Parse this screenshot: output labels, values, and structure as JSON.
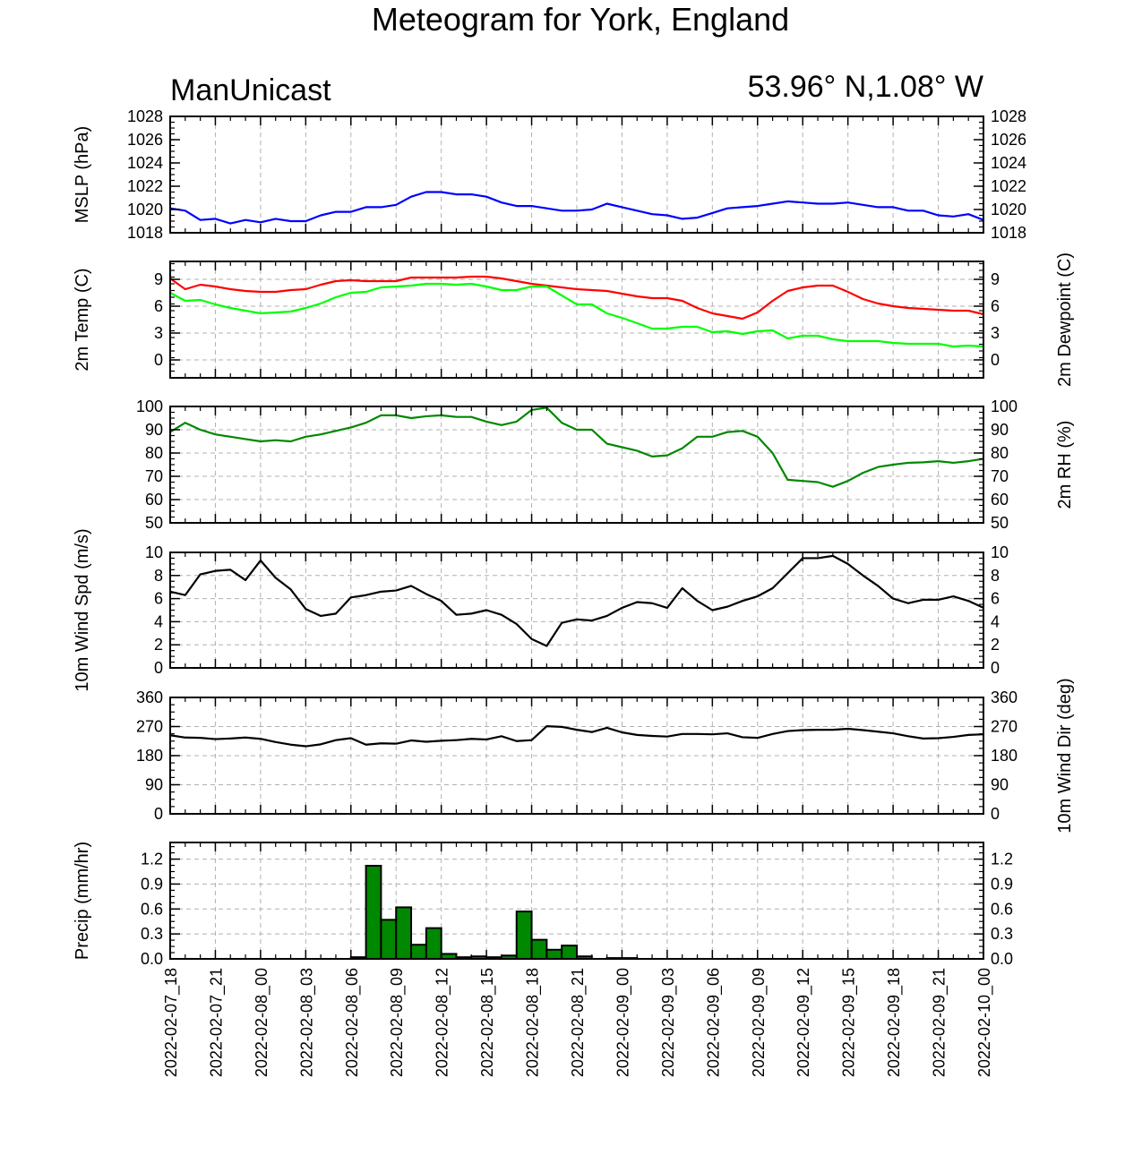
{
  "header": {
    "title": "Meteogram for York, England",
    "left_label": "ManUnicast",
    "right_label": "53.96° N,1.08° W"
  },
  "colors": {
    "mslp": "#0000ff",
    "temp": "#ff0000",
    "dewpoint": "#00ff00",
    "rh": "#008800",
    "wind": "#000000",
    "precip_fill": "#008800",
    "grid": "#b0b0b0"
  },
  "chart_data": [
    {
      "id": "mslp",
      "type": "line",
      "ylabel": "MSLP (hPa)",
      "ylabel_right": "",
      "ylim": [
        1018,
        1028
      ],
      "yticks": [
        1018,
        1020,
        1022,
        1024,
        1026,
        1028
      ],
      "ytick_labels": [
        "1018",
        "1020",
        "1022",
        "1024",
        "1026",
        "1028"
      ],
      "right_tick_labels": true,
      "hgrid": false,
      "series": [
        {
          "name": "",
          "color": "#0000ff",
          "values": [
            1020.1,
            1019.9,
            1019.1,
            1019.2,
            1018.8,
            1019.1,
            1018.9,
            1019.2,
            1019.0,
            1019.0,
            1019.5,
            1019.8,
            1019.8,
            1020.2,
            1020.2,
            1020.4,
            1021.1,
            1021.5,
            1021.5,
            1021.3,
            1021.3,
            1021.1,
            1020.6,
            1020.3,
            1020.3,
            1020.1,
            1019.9,
            1019.9,
            1020.0,
            1020.5,
            1020.2,
            1019.9,
            1019.6,
            1019.5,
            1019.2,
            1019.3,
            1019.7,
            1020.1,
            1020.2,
            1020.3,
            1020.5,
            1020.7,
            1020.6,
            1020.5,
            1020.5,
            1020.6,
            1020.4,
            1020.2,
            1020.2,
            1019.9,
            1019.9,
            1019.5,
            1019.4,
            1019.6,
            1019.1
          ]
        }
      ]
    },
    {
      "id": "temp",
      "type": "line",
      "ylabel": "2m Temp (C)",
      "ylabel_right": "2m Dewpoint (C)",
      "ylim": [
        -2,
        11
      ],
      "yticks": [
        0,
        3,
        6,
        9
      ],
      "ytick_labels": [
        "0",
        "3",
        "6",
        "9"
      ],
      "right_tick_labels": true,
      "hgrid": true,
      "series": [
        {
          "name": "",
          "color": "#ff0000",
          "values": [
            9.1,
            7.9,
            8.4,
            8.2,
            7.9,
            7.7,
            7.6,
            7.6,
            7.8,
            7.9,
            8.4,
            8.8,
            8.9,
            8.8,
            8.8,
            8.8,
            9.2,
            9.2,
            9.2,
            9.2,
            9.3,
            9.3,
            9.1,
            8.8,
            8.5,
            8.3,
            8.1,
            7.9,
            7.8,
            7.7,
            7.4,
            7.1,
            6.9,
            6.9,
            6.6,
            5.8,
            5.2,
            4.9,
            4.6,
            5.3,
            6.6,
            7.7,
            8.1,
            8.3,
            8.3,
            7.6,
            6.8,
            6.3,
            6.0,
            5.8,
            5.7,
            5.6,
            5.5,
            5.5,
            5.1
          ]
        },
        {
          "name": "",
          "color": "#00ff00",
          "values": [
            7.5,
            6.6,
            6.7,
            6.2,
            5.8,
            5.5,
            5.2,
            5.3,
            5.4,
            5.8,
            6.3,
            7.0,
            7.5,
            7.6,
            8.1,
            8.2,
            8.3,
            8.5,
            8.5,
            8.4,
            8.5,
            8.2,
            7.8,
            7.8,
            8.2,
            8.2,
            7.2,
            6.2,
            6.2,
            5.2,
            4.7,
            4.1,
            3.5,
            3.5,
            3.7,
            3.7,
            3.1,
            3.2,
            2.9,
            3.2,
            3.3,
            2.4,
            2.7,
            2.7,
            2.3,
            2.1,
            2.1,
            2.1,
            1.9,
            1.8,
            1.8,
            1.8,
            1.5,
            1.6,
            1.5
          ]
        }
      ]
    },
    {
      "id": "rh",
      "type": "line",
      "ylabel": "",
      "ylabel_right": "2m RH (%)",
      "ylim": [
        50,
        100
      ],
      "yticks": [
        50,
        60,
        70,
        80,
        90,
        100
      ],
      "ytick_labels": [
        "50",
        "60",
        "70",
        "80",
        "90",
        "100"
      ],
      "right_tick_labels": true,
      "hgrid": true,
      "series": [
        {
          "name": "",
          "color": "#008800",
          "values": [
            89,
            93,
            90,
            88,
            87,
            86,
            85,
            85.5,
            85,
            87,
            88,
            89.5,
            91,
            93,
            96.2,
            96.2,
            95,
            95.8,
            96.2,
            95.5,
            95.5,
            93.5,
            92,
            93.5,
            98.5,
            99.5,
            93,
            90,
            90,
            84,
            82.5,
            81,
            78.5,
            79,
            82,
            87,
            87,
            89,
            89.5,
            87,
            80,
            68.5,
            68,
            67.5,
            65.5,
            68,
            71.5,
            74,
            75,
            75.8,
            76,
            76.5,
            75.8,
            76.5,
            77.5
          ]
        }
      ]
    },
    {
      "id": "wspd",
      "type": "line",
      "ylabel": "10m Wind Spd (m/s)",
      "ylabel_right": "",
      "ylim": [
        0,
        10
      ],
      "yticks": [
        0,
        2,
        4,
        6,
        8,
        10
      ],
      "ytick_labels": [
        "0",
        "2",
        "4",
        "6",
        "8",
        "10"
      ],
      "right_tick_labels": true,
      "hgrid": true,
      "series": [
        {
          "name": "",
          "color": "#000000",
          "values": [
            6.6,
            6.3,
            8.1,
            8.4,
            8.5,
            7.6,
            9.3,
            7.8,
            6.8,
            5.1,
            4.5,
            4.7,
            6.1,
            6.3,
            6.6,
            6.7,
            7.1,
            6.4,
            5.8,
            4.6,
            4.7,
            5.0,
            4.6,
            3.8,
            2.5,
            1.9,
            3.9,
            4.2,
            4.1,
            4.5,
            5.2,
            5.7,
            5.6,
            5.2,
            6.9,
            5.8,
            5.0,
            5.3,
            5.8,
            6.2,
            6.9,
            8.2,
            9.5,
            9.5,
            9.7,
            9.0,
            8.0,
            7.1,
            6.0,
            5.6,
            5.9,
            5.9,
            6.2,
            5.8,
            5.2
          ]
        }
      ]
    },
    {
      "id": "wdir",
      "type": "line",
      "ylabel": "",
      "ylabel_right": "10m Wind Dir (deg)",
      "ylim": [
        0,
        360
      ],
      "yticks": [
        0,
        90,
        180,
        270,
        360
      ],
      "ytick_labels": [
        "0",
        "90",
        "180",
        "270",
        "360"
      ],
      "right_tick_labels": true,
      "hgrid": true,
      "series": [
        {
          "name": "",
          "color": "#000000",
          "values": [
            243,
            236,
            235,
            231,
            233,
            236,
            232,
            222,
            214,
            209,
            215,
            228,
            234,
            214,
            218,
            217,
            227,
            223,
            226,
            228,
            232,
            230,
            240,
            225,
            228,
            271,
            269,
            260,
            253,
            266,
            252,
            244,
            241,
            239,
            247,
            247,
            246,
            249,
            237,
            235,
            247,
            256,
            259,
            260,
            260,
            263,
            259,
            254,
            249,
            240,
            233,
            234,
            238,
            244,
            246
          ]
        }
      ]
    },
    {
      "id": "precip",
      "type": "bar",
      "ylabel": "Precip (mm/hr)",
      "ylabel_right": "",
      "ylim": [
        0,
        1.4
      ],
      "yticks": [
        0,
        0.3,
        0.6,
        0.9,
        1.2
      ],
      "ytick_labels": [
        "0.0",
        "0.3",
        "0.6",
        "0.9",
        "1.2"
      ],
      "right_tick_labels": true,
      "hgrid": true,
      "values": [
        0,
        0,
        0,
        0,
        0,
        0,
        0,
        0,
        0,
        0,
        0,
        0,
        0.02,
        1.12,
        0.47,
        0.62,
        0.17,
        0.37,
        0.06,
        0.02,
        0.03,
        0.02,
        0.04,
        0.57,
        0.23,
        0.11,
        0.16,
        0.03,
        0,
        0.01,
        0.01,
        0,
        0,
        0,
        0,
        0,
        0,
        0,
        0,
        0,
        0,
        0,
        0,
        0,
        0,
        0,
        0,
        0,
        0,
        0,
        0,
        0,
        0,
        0
      ]
    }
  ],
  "x_axis": {
    "hours_total": 54,
    "tick_every_hours": 3,
    "tick_labels": [
      "2022-02-07_18",
      "2022-02-07_21",
      "2022-02-08_00",
      "2022-02-08_03",
      "2022-02-08_06",
      "2022-02-08_09",
      "2022-02-08_12",
      "2022-02-08_15",
      "2022-02-08_18",
      "2022-02-08_21",
      "2022-02-09_00",
      "2022-02-09_03",
      "2022-02-09_06",
      "2022-02-09_09",
      "2022-02-09_12",
      "2022-02-09_15",
      "2022-02-09_18",
      "2022-02-09_21",
      "2022-02-10_00"
    ]
  }
}
